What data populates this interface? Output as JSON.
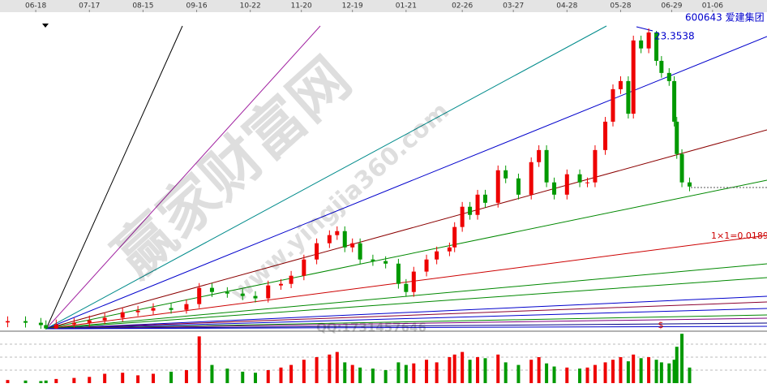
{
  "chart_data": {
    "type": "candlestick",
    "title": "600643 爱建集团",
    "x": [
      3,
      10,
      16,
      18,
      22,
      29,
      35,
      41,
      48,
      54,
      60,
      67,
      73,
      78,
      83,
      89,
      95,
      100,
      105,
      110,
      114,
      119,
      124,
      129,
      132,
      135,
      138,
      141,
      146,
      151,
      156,
      159,
      162,
      167,
      171,
      176,
      178,
      181,
      184,
      187,
      190,
      195,
      198,
      203,
      208,
      211,
      214,
      217,
      222,
      227,
      230,
      233,
      237,
      240,
      243,
      246,
      248,
      251,
      254,
      257,
      259,
      262,
      264,
      265,
      267,
      270
    ],
    "open": [
      4.9,
      4.98,
      4.88,
      4.73,
      4.52,
      4.78,
      4.88,
      5.03,
      5.19,
      5.54,
      5.64,
      5.8,
      5.69,
      6.05,
      7.07,
      6.81,
      6.71,
      6.56,
      6.41,
      7.22,
      7.32,
      7.83,
      8.85,
      9.87,
      10.38,
      10.63,
      9.61,
      9.87,
      8.85,
      8.75,
      8.59,
      7.32,
      6.81,
      8.09,
      8.85,
      9.36,
      9.61,
      10.89,
      12.16,
      11.65,
      12.92,
      12.41,
      14.45,
      13.94,
      12.92,
      14.96,
      15.72,
      13.69,
      12.92,
      14.2,
      13.69,
      13.69,
      15.72,
      17.5,
      19.54,
      20.05,
      18.0,
      22.6,
      22.1,
      23.1,
      21.32,
      20.56,
      20.05,
      17.5,
      15.47,
      13.69
    ],
    "close": [
      4.98,
      4.88,
      4.73,
      4.52,
      4.78,
      4.88,
      5.03,
      5.19,
      5.54,
      5.64,
      5.8,
      5.69,
      6.05,
      7.07,
      6.81,
      6.71,
      6.56,
      6.41,
      7.22,
      7.32,
      7.83,
      8.85,
      9.87,
      10.38,
      10.63,
      9.61,
      9.87,
      8.85,
      8.75,
      8.59,
      7.32,
      6.81,
      8.09,
      8.85,
      9.36,
      9.61,
      10.89,
      12.16,
      11.65,
      12.92,
      12.41,
      14.45,
      13.94,
      12.92,
      14.96,
      15.72,
      13.69,
      12.92,
      14.2,
      13.69,
      13.69,
      15.72,
      17.5,
      19.54,
      20.05,
      18.0,
      22.6,
      22.1,
      23.1,
      21.32,
      20.56,
      20.05,
      17.5,
      15.47,
      13.69,
      13.43
    ],
    "high": [
      5.28,
      5.28,
      5.18,
      5.03,
      5.08,
      5.18,
      5.33,
      5.49,
      5.84,
      5.94,
      6.1,
      6.1,
      6.35,
      7.37,
      7.37,
      7.11,
      7.01,
      6.86,
      7.52,
      7.62,
      8.13,
      9.15,
      10.17,
      10.68,
      10.93,
      10.93,
      10.17,
      10.17,
      9.15,
      9.05,
      8.89,
      7.62,
      8.39,
      9.15,
      9.66,
      9.91,
      11.19,
      12.46,
      12.46,
      13.22,
      13.22,
      14.75,
      14.75,
      14.24,
      15.26,
      16.02,
      16.02,
      13.99,
      14.5,
      14.5,
      13.99,
      16.02,
      17.8,
      19.84,
      20.35,
      20.35,
      22.9,
      22.9,
      23.3538,
      23.2,
      21.62,
      20.86,
      20.35,
      17.8,
      15.77,
      13.99
    ],
    "low": [
      4.6,
      4.58,
      4.5,
      4.45,
      4.5,
      4.55,
      4.62,
      4.8,
      4.95,
      5.3,
      5.4,
      5.45,
      5.45,
      5.8,
      6.5,
      6.45,
      6.3,
      6.15,
      6.15,
      6.95,
      7.05,
      7.55,
      8.55,
      9.57,
      10.08,
      9.31,
      9.31,
      8.55,
      8.45,
      8.29,
      7.02,
      6.51,
      6.51,
      7.79,
      8.55,
      9.06,
      9.31,
      10.59,
      11.35,
      11.35,
      12.11,
      12.11,
      13.64,
      12.62,
      12.62,
      14.66,
      13.39,
      12.62,
      12.62,
      13.39,
      13.39,
      13.39,
      15.42,
      17.2,
      19.24,
      17.7,
      17.7,
      21.8,
      21.8,
      21.02,
      20.26,
      19.75,
      17.2,
      15.17,
      13.39,
      13.13
    ],
    "volume": [
      6,
      5,
      4,
      5,
      8,
      10,
      12,
      18,
      20,
      15,
      18,
      22,
      25,
      90,
      35,
      28,
      22,
      20,
      25,
      30,
      35,
      45,
      50,
      55,
      60,
      40,
      35,
      30,
      28,
      25,
      40,
      35,
      38,
      45,
      40,
      50,
      55,
      60,
      45,
      50,
      48,
      55,
      40,
      35,
      45,
      50,
      38,
      32,
      30,
      28,
      30,
      35,
      40,
      45,
      50,
      42,
      55,
      48,
      50,
      45,
      40,
      38,
      45,
      70,
      95,
      30
    ],
    "xlim": [
      0,
      300
    ],
    "ylim": [
      4.35,
      24.12
    ],
    "volume_ylim": [
      0,
      100
    ],
    "xticks": [
      {
        "value": 14,
        "label": "06-18"
      },
      {
        "value": 35,
        "label": "07-17"
      },
      {
        "value": 56,
        "label": "08-15"
      },
      {
        "value": 77,
        "label": "09-16"
      },
      {
        "value": 98,
        "label": "10-22"
      },
      {
        "value": 118,
        "label": "11-20"
      },
      {
        "value": 138,
        "label": "12-19"
      },
      {
        "value": 159,
        "label": "01-21"
      },
      {
        "value": 181,
        "label": "02-26"
      },
      {
        "value": 201,
        "label": "03-27"
      },
      {
        "value": 222,
        "label": "04-28"
      },
      {
        "value": 243,
        "label": "05-28"
      },
      {
        "value": 263,
        "label": "06-29"
      },
      {
        "value": 279,
        "label": "01-06"
      }
    ],
    "up_color": "#ee0000",
    "down_color": "#009900",
    "peak_label": 23.3538,
    "gann_label": "1×1=0.0189",
    "marker": "$",
    "watermark": "赢家财富网",
    "watermark_url": "www.yingjia360.com",
    "contact": "QQ:1731457646"
  }
}
